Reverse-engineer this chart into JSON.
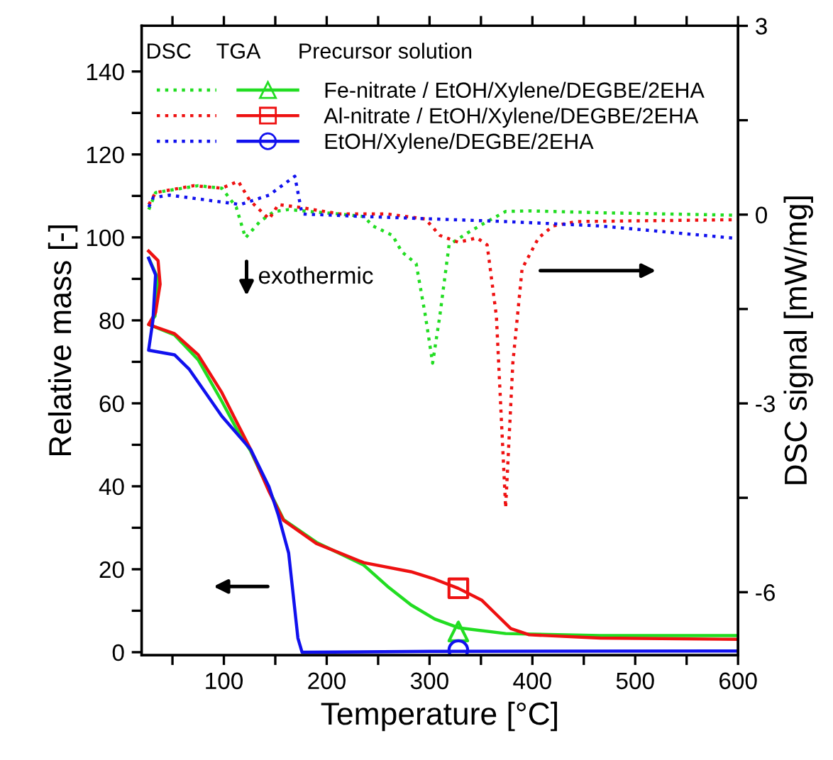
{
  "chart_data": {
    "type": "line",
    "xlabel": "Temperature [°C]",
    "ylabel": "Relative mass [-]",
    "y2label": "DSC signal [mW/mg]",
    "xlim": [
      20,
      600
    ],
    "ylim": [
      -0.7,
      151
    ],
    "y2lim": [
      -7,
      3
    ],
    "xticks": [
      {
        "value": 50,
        "label": null
      },
      100,
      {
        "value": 150,
        "label": null
      },
      200,
      {
        "value": 250,
        "label": null
      },
      300,
      {
        "value": 350,
        "label": null
      },
      400,
      {
        "value": 450,
        "label": null
      },
      500,
      {
        "value": 550,
        "label": null
      },
      600
    ],
    "yticks": [
      0,
      {
        "value": 10,
        "label": null
      },
      20,
      {
        "value": 30,
        "label": null
      },
      40,
      {
        "value": 50,
        "label": null
      },
      60,
      {
        "value": 70,
        "label": null
      },
      80,
      {
        "value": 90,
        "label": null
      },
      100,
      {
        "value": 110,
        "label": null
      },
      120,
      {
        "value": 130,
        "label": null
      },
      140
    ],
    "y2ticks": [
      3,
      {
        "value": 1.5,
        "label": null
      },
      0,
      {
        "value": -1.5,
        "label": null
      },
      -3,
      {
        "value": -4.5,
        "label": null
      },
      -6
    ],
    "grid": false,
    "legend": "top left",
    "annotations": [
      "DSC",
      "TGA",
      "Precursor solution",
      "exothermic"
    ],
    "series": [
      {
        "axis": "y2",
        "line_style": "dotted",
        "color": "#22dd22",
        "x": [
          27,
          33.6,
          75,
          98,
          112,
          121,
          135,
          149,
          163,
          190,
          213,
          236,
          245,
          264,
          273,
          287,
          296,
          303,
          310,
          319,
          337,
          356,
          374,
          397,
          466,
          600
        ],
        "values": [
          0.08,
          0.35,
          0.46,
          0.42,
          0.12,
          -0.37,
          -0.11,
          0.05,
          0.08,
          0.04,
          0.01,
          -0.03,
          -0.18,
          -0.33,
          -0.59,
          -0.78,
          -1.61,
          -2.36,
          -1.61,
          -0.48,
          -0.29,
          -0.11,
          0.05,
          0.06,
          0.03,
          -0.01
        ]
      },
      {
        "axis": "y2",
        "line_style": "dotted",
        "color": "#ee1111",
        "x": [
          27,
          33.6,
          70.5,
          98,
          114,
          125,
          144,
          153,
          172,
          213,
          259,
          296,
          310,
          328,
          346,
          356,
          365,
          374,
          381,
          390,
          406,
          420,
          443,
          600
        ],
        "values": [
          0.16,
          0.35,
          0.46,
          0.42,
          0.53,
          0.23,
          -0.07,
          0.16,
          0.12,
          0.01,
          0.01,
          -0.07,
          -0.33,
          -0.44,
          -0.37,
          -0.48,
          -1.61,
          -4.66,
          -2.36,
          -0.86,
          -0.37,
          -0.18,
          -0.11,
          -0.08
        ]
      },
      {
        "axis": "y2",
        "line_style": "dotted",
        "color": "#1111ee",
        "x": [
          27,
          31.3,
          47,
          98,
          116,
          144,
          169,
          176,
          236,
          374,
          466,
          600
        ],
        "values": [
          0.12,
          0.27,
          0.31,
          0.2,
          0.16,
          0.31,
          0.61,
          0.01,
          -0.03,
          -0.11,
          -0.18,
          -0.38
        ]
      },
      {
        "line_style": "solid",
        "name": "Fe-nitrate / EtOH/Xylene/DEGBE/2EHA",
        "color": "#22dd22",
        "x": [
          27,
          36,
          33,
          27,
          52,
          75,
          98,
          112,
          126,
          144,
          158,
          190,
          236,
          259,
          282,
          305,
          328,
          374,
          466,
          600
        ],
        "values": [
          95,
          90,
          81,
          79,
          76.5,
          70.5,
          60.5,
          54,
          48.5,
          39,
          32,
          26.5,
          21,
          15.9,
          11.4,
          8,
          5.9,
          4.5,
          4,
          4
        ]
      },
      {
        "line_style": "solid",
        "name": "Al-nitrate / EtOH/Xylene/DEGBE/2EHA",
        "color": "#ee1111",
        "x": [
          26.8,
          36,
          38,
          33.6,
          26.8,
          52,
          75,
          98,
          112,
          126,
          144,
          158,
          190,
          236,
          282,
          305,
          328,
          351,
          365,
          379,
          397,
          466,
          600
        ],
        "values": [
          96.7,
          94.4,
          88.7,
          81.9,
          79,
          76.8,
          71.7,
          62.6,
          55.7,
          48.9,
          38.7,
          31.8,
          26.2,
          21.6,
          19.4,
          17.6,
          15.4,
          12.5,
          9.1,
          5.7,
          4.2,
          3.4,
          3.1
        ]
      },
      {
        "line_style": "solid",
        "name": "EtOH/Xylene/DEGBE/2EHA",
        "color": "#1111ee",
        "x": [
          26.8,
          33.6,
          31,
          26.8,
          52,
          66,
          98,
          126,
          144,
          153,
          163,
          172,
          176,
          300,
          600
        ],
        "values": [
          95,
          91,
          80,
          72.8,
          71.7,
          68.3,
          56.9,
          48.9,
          39.8,
          33,
          23.9,
          3.4,
          0,
          0.2,
          0.3
        ]
      },
      {
        "type": "scatter",
        "marker": "triangle",
        "color": "#22dd22",
        "x": [
          328
        ],
        "values": [
          5
        ]
      },
      {
        "type": "scatter",
        "marker": "square",
        "color": "#ee1111",
        "x": [
          328
        ],
        "values": [
          15.4
        ]
      },
      {
        "type": "scatter",
        "marker": "circle",
        "color": "#1111ee",
        "x": [
          328
        ],
        "values": [
          0.5
        ]
      }
    ]
  }
}
